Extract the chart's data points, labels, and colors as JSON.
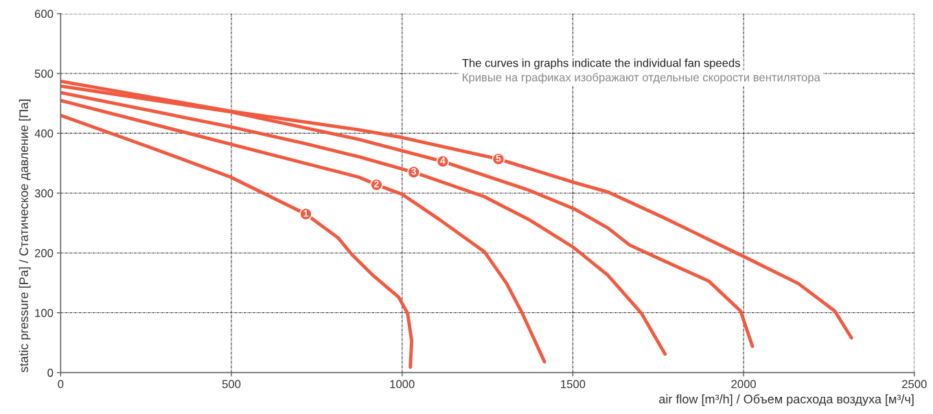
{
  "chart_data": {
    "type": "line",
    "xlabel": "air flow [m³/h] / Объем расхода воздуха [м³/ч]",
    "ylabel": "static pressure [Pa] / Статическое давление [Па]",
    "xlim": [
      0,
      2500
    ],
    "xticks": [
      0,
      500,
      1000,
      1500,
      2000,
      2500
    ],
    "ylim": [
      0,
      600
    ],
    "yticks": [
      0,
      100,
      200,
      300,
      400,
      500,
      600
    ],
    "grid": true,
    "line_style": "solid",
    "marker": "none",
    "series": [
      {
        "color": "#f05a40",
        "x": [
          0,
          250,
          497,
          718,
          813,
          852,
          912,
          990,
          1016,
          1028,
          1024
        ],
        "values": [
          430,
          379,
          327,
          265,
          225,
          198,
          164,
          126,
          99,
          53,
          9
        ]
      },
      {
        "color": "#f05a40",
        "x": [
          0,
          497,
          872,
          925,
          1000,
          1109,
          1241,
          1306,
          1352,
          1417
        ],
        "values": [
          455,
          382,
          327,
          314,
          298,
          256,
          202,
          149,
          99,
          18
        ]
      },
      {
        "color": "#f05a40",
        "x": [
          0,
          497,
          714,
          872,
          1034,
          1241,
          1371,
          1500,
          1602,
          1701,
          1770
        ],
        "values": [
          468,
          411,
          383,
          361,
          335,
          294,
          256,
          210,
          163,
          99,
          31
        ]
      },
      {
        "color": "#f05a40",
        "x": [
          0,
          497,
          872,
          1119,
          1371,
          1503,
          1602,
          1667,
          1766,
          1898,
          1991,
          2026
        ],
        "values": [
          479,
          436,
          390,
          353,
          305,
          274,
          242,
          213,
          187,
          153,
          103,
          44
        ]
      },
      {
        "color": "#f05a40",
        "x": [
          0,
          497,
          872,
          1000,
          1282,
          1503,
          1602,
          1766,
          1997,
          2160,
          2267,
          2316
        ],
        "values": [
          487,
          437,
          406,
          393,
          357,
          318,
          302,
          259,
          195,
          149,
          103,
          58
        ]
      }
    ],
    "annotations": [
      {
        "text": "1",
        "x": 718,
        "y": 265
      },
      {
        "text": "2",
        "x": 925,
        "y": 314
      },
      {
        "text": "3",
        "x": 1034,
        "y": 335
      },
      {
        "text": "4",
        "x": 1119,
        "y": 353
      },
      {
        "text": "5",
        "x": 1282,
        "y": 357
      },
      "The curves in graphs indicate the individual fan speeds",
      "Кривые на графиках изображают отдельные скорости вентилятора"
    ]
  }
}
